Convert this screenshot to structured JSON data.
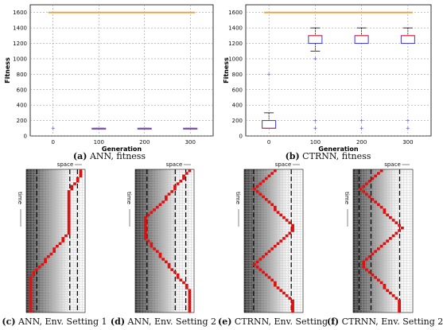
{
  "chart_data": [
    {
      "type": "box",
      "id": "a",
      "ylabel": "Fitness",
      "xlabel": "Generation",
      "ylim": [
        0,
        1700
      ],
      "yticks": [
        0,
        200,
        400,
        600,
        800,
        1000,
        1200,
        1400,
        1600
      ],
      "xticks": [
        0,
        100,
        200,
        300
      ],
      "grid": true,
      "max_line": 1600,
      "boxes": [
        {
          "x": 100,
          "q1": 97,
          "median": 98,
          "q3": 100,
          "whisker_low": 97,
          "whisker_high": 100,
          "outliers": []
        },
        {
          "x": 200,
          "q1": 97,
          "median": 98,
          "q3": 100,
          "whisker_low": 97,
          "whisker_high": 100,
          "outliers": []
        },
        {
          "x": 300,
          "q1": 97,
          "median": 98,
          "q3": 100,
          "whisker_low": 97,
          "whisker_high": 100,
          "outliers": []
        }
      ],
      "points": [
        {
          "x": 0,
          "y": 100
        }
      ]
    },
    {
      "type": "box",
      "id": "b",
      "ylabel": "Fitness",
      "xlabel": "Generation",
      "ylim": [
        0,
        1700
      ],
      "yticks": [
        0,
        200,
        400,
        600,
        800,
        1000,
        1200,
        1400,
        1600
      ],
      "xticks": [
        0,
        100,
        200,
        300
      ],
      "grid": true,
      "max_line": 1600,
      "boxes": [
        {
          "x": 0,
          "q1": 100,
          "median": 100,
          "q3": 200,
          "whisker_low": 100,
          "whisker_high": 300,
          "outliers": [
            800
          ]
        },
        {
          "x": 100,
          "q1": 1200,
          "median": 1300,
          "q3": 1300,
          "whisker_low": 1100,
          "whisker_high": 1400,
          "outliers": [
            1000,
            200,
            100
          ]
        },
        {
          "x": 200,
          "q1": 1200,
          "median": 1300,
          "q3": 1300,
          "whisker_low": 1200,
          "whisker_high": 1400,
          "outliers": [
            200,
            100
          ]
        },
        {
          "x": 300,
          "q1": 1200,
          "median": 1300,
          "q3": 1300,
          "whisker_low": 1200,
          "whisker_high": 1400,
          "outliers": [
            200,
            100
          ]
        }
      ],
      "points": []
    }
  ],
  "panels": [
    {
      "label": "space",
      "time_label": "time",
      "path": [
        0.96,
        0.95,
        0.93,
        0.9,
        0.87,
        0.84,
        0.81,
        0.78,
        0.75,
        0.73,
        0.73,
        0.73,
        0.73,
        0.73,
        0.73,
        0.73,
        0.73,
        0.73,
        0.73,
        0.73,
        0.73,
        0.73,
        0.73,
        0.73,
        0.73,
        0.69,
        0.65,
        0.61,
        0.57,
        0.53,
        0.49,
        0.45,
        0.41,
        0.37,
        0.33,
        0.29,
        0.25,
        0.21,
        0.17,
        0.13,
        0.09,
        0.05,
        0.03,
        0.03,
        0.03,
        0.03,
        0.03,
        0.03,
        0.03,
        0.03,
        0.03,
        0.03,
        0.03,
        0.03,
        0.03
      ],
      "dashes": [
        0.18,
        0.74,
        0.87
      ]
    },
    {
      "label": "space",
      "time_label": "time",
      "path": [
        0.93,
        0.9,
        0.86,
        0.82,
        0.78,
        0.74,
        0.7,
        0.66,
        0.62,
        0.58,
        0.54,
        0.5,
        0.45,
        0.4,
        0.35,
        0.3,
        0.25,
        0.2,
        0.16,
        0.14,
        0.14,
        0.14,
        0.14,
        0.14,
        0.14,
        0.14,
        0.16,
        0.2,
        0.24,
        0.28,
        0.32,
        0.36,
        0.4,
        0.44,
        0.48,
        0.52,
        0.56,
        0.6,
        0.64,
        0.68,
        0.72,
        0.76,
        0.8,
        0.84,
        0.88,
        0.92,
        0.93,
        0.93,
        0.93,
        0.93,
        0.93,
        0.93,
        0.93,
        0.93,
        0.93
      ],
      "dashes": [
        0.2,
        0.68,
        0.86
      ]
    },
    {
      "label": "space",
      "time_label": "time",
      "path": [
        0.5,
        0.45,
        0.4,
        0.35,
        0.3,
        0.25,
        0.2,
        0.17,
        0.2,
        0.25,
        0.3,
        0.35,
        0.4,
        0.45,
        0.5,
        0.55,
        0.6,
        0.65,
        0.7,
        0.75,
        0.8,
        0.84,
        0.86,
        0.82,
        0.77,
        0.72,
        0.67,
        0.62,
        0.57,
        0.52,
        0.47,
        0.42,
        0.37,
        0.32,
        0.27,
        0.22,
        0.18,
        0.2,
        0.25,
        0.3,
        0.35,
        0.4,
        0.45,
        0.5,
        0.55,
        0.6,
        0.65,
        0.7,
        0.75,
        0.8,
        0.82,
        0.82,
        0.82,
        0.82,
        0.82
      ],
      "dashes": [
        0.16,
        0.8
      ]
    },
    {
      "label": "space",
      "time_label": "time",
      "path": [
        0.45,
        0.4,
        0.35,
        0.3,
        0.25,
        0.2,
        0.15,
        0.12,
        0.15,
        0.2,
        0.25,
        0.3,
        0.35,
        0.4,
        0.45,
        0.5,
        0.55,
        0.6,
        0.65,
        0.7,
        0.75,
        0.8,
        0.82,
        0.78,
        0.73,
        0.68,
        0.63,
        0.58,
        0.53,
        0.48,
        0.43,
        0.38,
        0.33,
        0.28,
        0.23,
        0.18,
        0.14,
        0.16,
        0.2,
        0.25,
        0.3,
        0.35,
        0.4,
        0.45,
        0.5,
        0.55,
        0.6,
        0.65,
        0.7,
        0.75,
        0.78,
        0.78,
        0.78,
        0.78,
        0.78
      ],
      "dashes": [
        0.1,
        0.3,
        0.78
      ]
    }
  ],
  "captions": [
    {
      "letter": "(a)",
      "text": " ANN, fitness"
    },
    {
      "letter": "(b)",
      "text": " CTRNN, fitness"
    },
    {
      "letter": "(c)",
      "text": " ANN, Env. Setting 1"
    },
    {
      "letter": "(d)",
      "text": " ANN, Env. Setting 2"
    },
    {
      "letter": "(e)",
      "text": " CTRNN, Env. Setting 1"
    },
    {
      "letter": "(f)",
      "text": " CTRNN, Env. Setting 2"
    }
  ],
  "colors": {
    "max_line": "#f0a030",
    "box": "#3a3ae0",
    "median": "#e03030",
    "outlier": "#6a6ae8",
    "agent": "#e01010",
    "grid": "#888888"
  }
}
